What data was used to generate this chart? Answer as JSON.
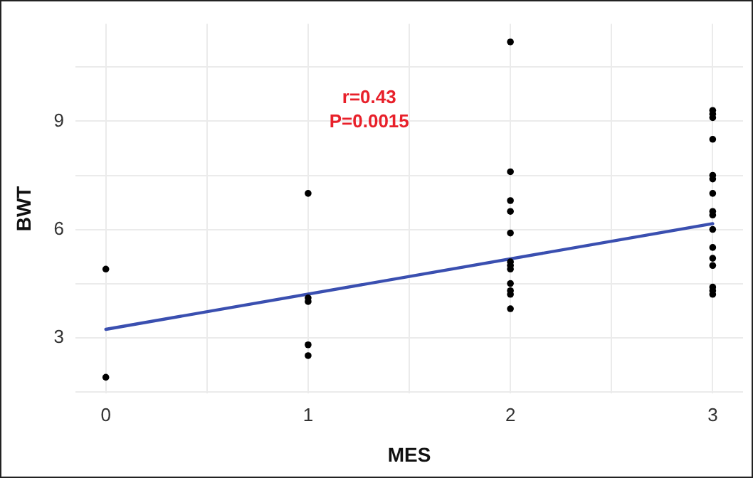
{
  "chart_data": {
    "type": "scatter",
    "xlabel": "MES",
    "ylabel": "BWT",
    "annotations": [
      "r=0.43",
      "P=0.0015"
    ],
    "xlim": [
      -0.15,
      3.15
    ],
    "xticks": [
      0,
      {
        "value": 0.5,
        "label": null
      },
      1,
      {
        "value": 1.5,
        "label": null
      },
      2,
      {
        "value": 2.5,
        "label": null
      },
      3
    ],
    "ylim": [
      1.45,
      11.7
    ],
    "yticks": [
      {
        "value": 1.5,
        "label": null
      },
      3,
      {
        "value": 4.5,
        "label": null
      },
      6,
      {
        "value": 7.5,
        "label": null
      },
      9,
      {
        "value": 10.5,
        "label": null
      }
    ],
    "grid": true,
    "legend": false,
    "marker": "circle",
    "series": [
      {
        "color": "#000000",
        "x": [
          0,
          0,
          1,
          1,
          1,
          1,
          1,
          2,
          2,
          2,
          2,
          2,
          2,
          2,
          2,
          2,
          2,
          2,
          2,
          3,
          3,
          3,
          3,
          3,
          3,
          3,
          3,
          3,
          3,
          3,
          3,
          3,
          3,
          3,
          3
        ],
        "values": [
          4.9,
          1.9,
          7.0,
          4.1,
          4.0,
          2.8,
          2.5,
          11.2,
          7.6,
          6.8,
          6.5,
          5.9,
          5.1,
          5.0,
          4.9,
          4.5,
          4.3,
          4.2,
          3.8,
          9.3,
          9.2,
          9.1,
          8.5,
          7.5,
          7.4,
          7.0,
          6.5,
          6.4,
          6.0,
          5.5,
          5.2,
          5.0,
          4.4,
          4.3,
          4.2
        ]
      },
      {
        "type": "line",
        "color": "#3a4fb0",
        "marker": "none",
        "x": [
          0,
          3
        ],
        "values": [
          3.23,
          6.16
        ]
      }
    ]
  }
}
